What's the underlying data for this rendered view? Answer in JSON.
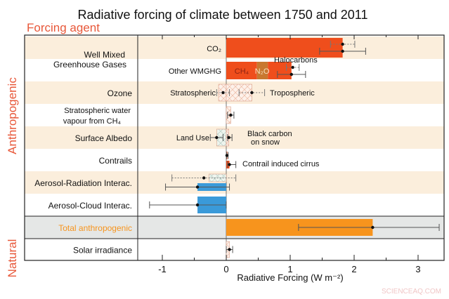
{
  "chart_data": {
    "type": "bar",
    "orientation": "horizontal",
    "title": "Radiative forcing of climate between 1750 and 2011",
    "column_header": "Forcing agent",
    "xlabel": "Radiative Forcing (W m⁻²)",
    "xlim": [
      -1.4,
      3.4
    ],
    "xticks": [
      "-1",
      "0",
      "1",
      "2",
      "3"
    ],
    "group_labels": [
      "Anthropogenic",
      "Natural"
    ],
    "grid": false,
    "colors": {
      "ghg": "#ef4e1c",
      "n2o": "#c8782f",
      "aerosol": "#3a9ad9",
      "total": "#f7941d",
      "band": "#fbeedc",
      "total_band": "#e5e7e6",
      "group_label": "#e8583a",
      "hatch": "#e9b9a4"
    },
    "rows": [
      {
        "label": "Well Mixed Greenhouse Gases",
        "label_line1": "Well Mixed",
        "label_line2": "Greenhouse Gases",
        "group": "Anthropogenic",
        "sub_labels": [
          "CO₂",
          "Other WMGHG"
        ],
        "annotations": [
          "CH₄",
          "N₂O",
          "Halocarbons"
        ],
        "bars": [
          {
            "component": "CO₂",
            "start": 0,
            "end": 1.82,
            "style": "ghg",
            "lane": "upper"
          },
          {
            "component": "CH₄",
            "start": 0,
            "end": 0.48,
            "style": "ghg",
            "lane": "lower"
          },
          {
            "component": "N₂O",
            "start": 0.48,
            "end": 0.65,
            "style": "n2o",
            "lane": "lower"
          },
          {
            "component": "Halocarbons",
            "start": 0.65,
            "end": 1.02,
            "style": "ghg",
            "lane": "lower"
          }
        ],
        "estimates": [
          {
            "value": 1.82,
            "low": 1.63,
            "high": 2.01,
            "line": "dotted",
            "lane": "upper-a"
          },
          {
            "value": 1.82,
            "low": 1.46,
            "high": 2.18,
            "line": "solid",
            "lane": "upper-b"
          },
          {
            "value": 1.04,
            "low": 0.94,
            "high": 1.14,
            "line": "dotted",
            "lane": "lower-a"
          },
          {
            "value": 1.02,
            "low": 0.8,
            "high": 1.24,
            "line": "solid",
            "lane": "lower-b"
          }
        ]
      },
      {
        "label": "Ozone",
        "group": "Anthropogenic",
        "annotations": [
          "Stratospheric",
          "Tropospheric"
        ],
        "bars": [
          {
            "start": -0.12,
            "end": 0,
            "style": "hatch",
            "lane": "center"
          },
          {
            "start": 0,
            "end": 0.4,
            "style": "hatch",
            "lane": "center"
          }
        ],
        "estimates": [
          {
            "value": -0.05,
            "low": -0.15,
            "high": 0.05,
            "line": "dotted",
            "lane": "center"
          },
          {
            "value": 0.4,
            "low": 0.2,
            "high": 0.6,
            "line": "dotted",
            "lane": "center"
          }
        ]
      },
      {
        "label": "Stratospheric water vapour from CH₄",
        "label_line1": "Stratospheric water",
        "label_line2": "vapour from CH₄",
        "group": "Anthropogenic",
        "bars": [
          {
            "start": 0,
            "end": 0.07,
            "style": "hatch",
            "lane": "center"
          }
        ],
        "estimates": [
          {
            "value": 0.07,
            "low": 0.02,
            "high": 0.12,
            "line": "solid",
            "lane": "center"
          }
        ]
      },
      {
        "label": "Surface Albedo",
        "group": "Anthropogenic",
        "annotations": [
          "Land Use",
          "Black carbon",
          "on snow"
        ],
        "bars": [
          {
            "start": -0.15,
            "end": 0,
            "style": "hatch-green",
            "lane": "center"
          },
          {
            "start": 0,
            "end": 0.04,
            "style": "hatch",
            "lane": "center"
          }
        ],
        "estimates": [
          {
            "value": -0.15,
            "low": -0.25,
            "high": -0.05,
            "line": "solid",
            "lane": "center"
          },
          {
            "value": 0.04,
            "low": 0.02,
            "high": 0.09,
            "line": "solid",
            "lane": "center"
          }
        ]
      },
      {
        "label": "Contrails",
        "group": "Anthropogenic",
        "annotations": [
          "Contrail induced cirrus"
        ],
        "bars": [
          {
            "start": 0,
            "end": 0.01,
            "style": "ghg",
            "lane": "upper"
          },
          {
            "start": 0,
            "end": 0.05,
            "style": "ghg",
            "lane": "lower"
          }
        ],
        "estimates": [
          {
            "value": 0.01,
            "low": 0.005,
            "high": 0.03,
            "line": "solid",
            "lane": "upper"
          },
          {
            "value": 0.05,
            "low": 0.02,
            "high": 0.15,
            "line": "solid",
            "lane": "lower"
          }
        ]
      },
      {
        "label": "Aerosol-Radiation Interac.",
        "group": "Anthropogenic",
        "bars": [
          {
            "start": -0.27,
            "end": 0,
            "style": "hatch-green",
            "lane": "upper"
          },
          {
            "start": -0.45,
            "end": 0,
            "style": "aerosol",
            "lane": "lower"
          }
        ],
        "estimates": [
          {
            "value": -0.35,
            "low": -0.85,
            "high": 0.15,
            "line": "dotted",
            "lane": "upper"
          },
          {
            "value": -0.45,
            "low": -0.95,
            "high": 0.05,
            "line": "solid",
            "lane": "lower"
          }
        ]
      },
      {
        "label": "Aerosol-Cloud Interac.",
        "group": "Anthropogenic",
        "bars": [
          {
            "start": -0.45,
            "end": 0,
            "style": "aerosol",
            "lane": "center"
          }
        ],
        "estimates": [
          {
            "value": -0.45,
            "low": -1.2,
            "high": 0.0,
            "line": "solid",
            "lane": "center"
          }
        ]
      },
      {
        "label": "Total anthropogenic",
        "group": "Anthropogenic",
        "highlight": true,
        "bars": [
          {
            "start": 0,
            "end": 2.29,
            "style": "total",
            "lane": "center"
          }
        ],
        "estimates": [
          {
            "value": 2.29,
            "low": 1.13,
            "high": 3.33,
            "line": "solid",
            "lane": "center"
          }
        ]
      },
      {
        "label": "Solar irradiance",
        "group": "Natural",
        "bars": [
          {
            "start": 0,
            "end": 0.05,
            "style": "hatch",
            "lane": "center"
          }
        ],
        "estimates": [
          {
            "value": 0.05,
            "low": 0.0,
            "high": 0.1,
            "line": "solid",
            "lane": "center"
          }
        ]
      }
    ]
  },
  "watermark": "SCIENCEAQ.COM"
}
